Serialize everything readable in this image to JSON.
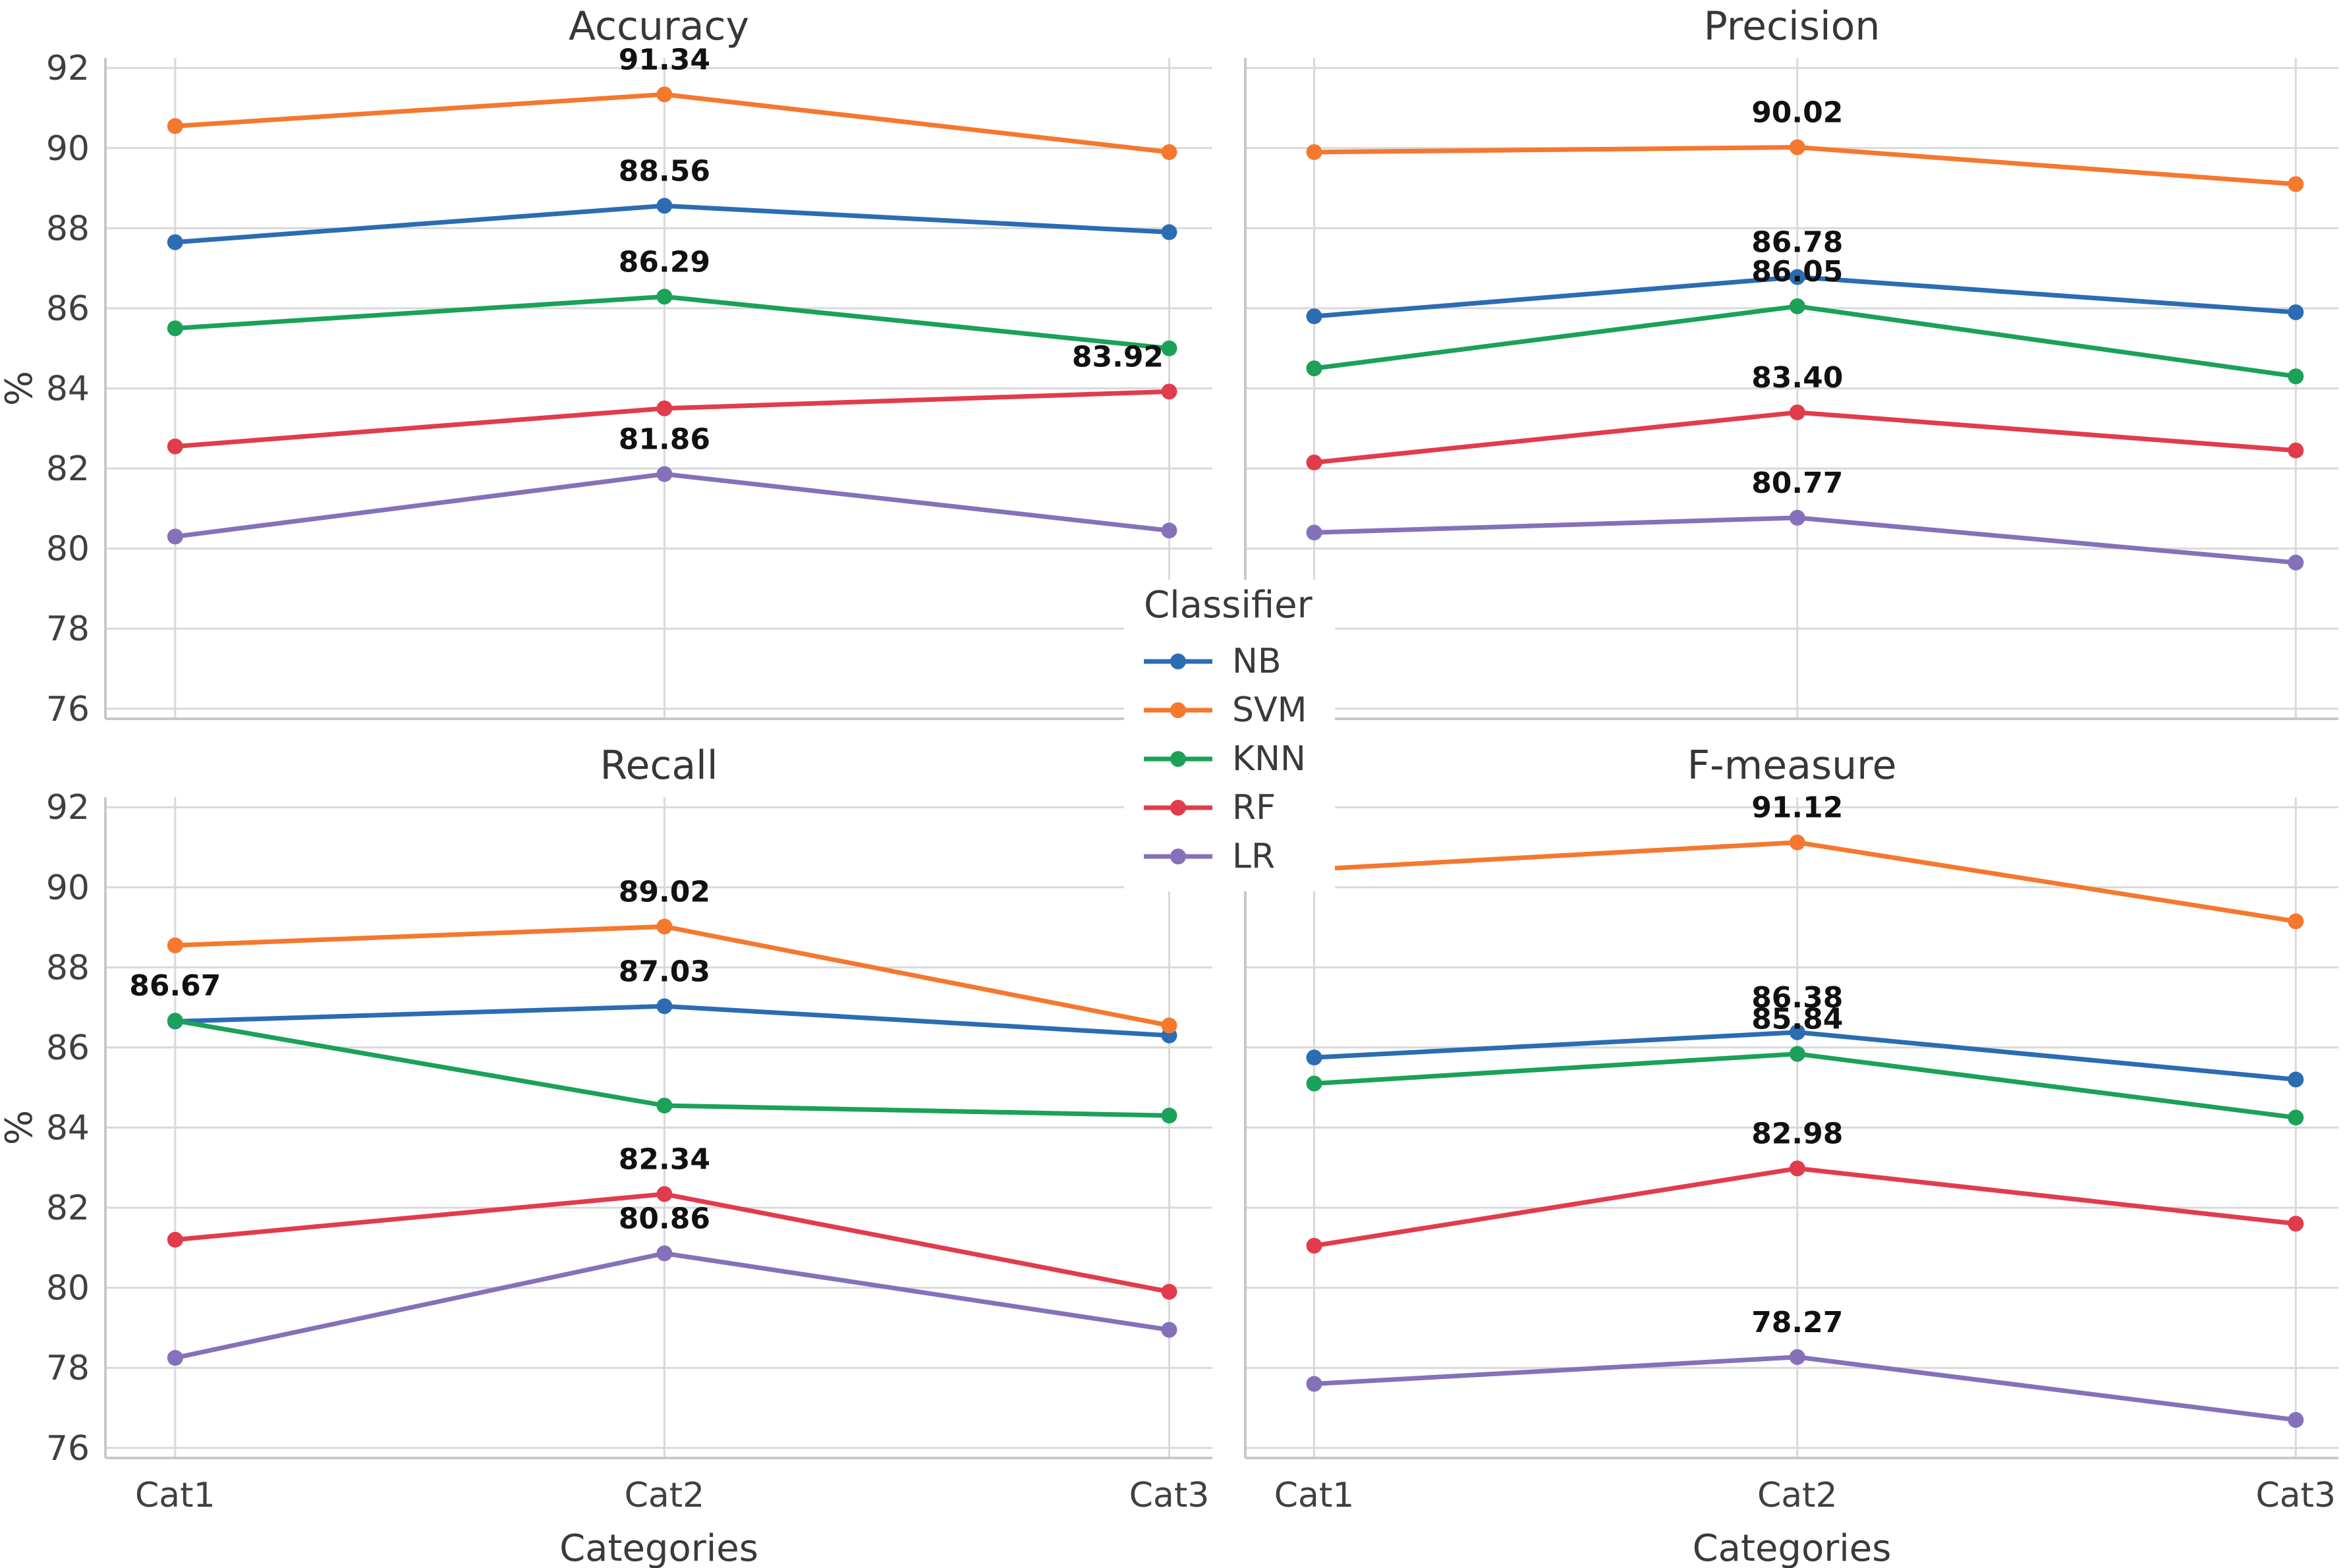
{
  "figure": {
    "background": "#ffffff",
    "grid_color": "#d9d9d9",
    "spine_color": "#c8c8c8",
    "xlabel": "Categories",
    "ylabel": "%",
    "categories": [
      "Cat1",
      "Cat2",
      "Cat3"
    ],
    "y_ticks": [
      "76",
      "78",
      "80",
      "82",
      "84",
      "86",
      "88",
      "90",
      "92"
    ]
  },
  "legend": {
    "title": "Classifier",
    "position": "figure-center",
    "items": [
      {
        "label": "NB",
        "color": "#2b6cb3"
      },
      {
        "label": "SVM",
        "color": "#f4782e"
      },
      {
        "label": "KNN",
        "color": "#1ba158"
      },
      {
        "label": "RF",
        "color": "#e13c4c"
      },
      {
        "label": "LR",
        "color": "#8571b9"
      }
    ]
  },
  "chart_data": [
    {
      "type": "line",
      "title": "Accuracy",
      "position": "top-left",
      "categories": [
        "Cat1",
        "Cat2",
        "Cat3"
      ],
      "xlabel": "Categories",
      "ylabel": "%",
      "ylim": [
        76,
        92
      ],
      "yticks": [
        76,
        78,
        80,
        82,
        84,
        86,
        88,
        90,
        92
      ],
      "grid": true,
      "series": [
        {
          "name": "NB",
          "color": "#2b6cb3",
          "values": [
            87.65,
            88.56,
            87.9
          ]
        },
        {
          "name": "SVM",
          "color": "#f4782e",
          "values": [
            90.55,
            91.34,
            89.9
          ]
        },
        {
          "name": "KNN",
          "color": "#1ba158",
          "values": [
            85.5,
            86.29,
            85.0
          ]
        },
        {
          "name": "RF",
          "color": "#e13c4c",
          "values": [
            82.55,
            83.5,
            83.92
          ]
        },
        {
          "name": "LR",
          "color": "#8571b9",
          "values": [
            80.3,
            81.86,
            80.45
          ]
        }
      ],
      "annotations": [
        {
          "series": "SVM",
          "category": "Cat2",
          "text": "91.34"
        },
        {
          "series": "NB",
          "category": "Cat2",
          "text": "88.56"
        },
        {
          "series": "KNN",
          "category": "Cat2",
          "text": "86.29"
        },
        {
          "series": "RF",
          "category": "Cat3",
          "text": "83.92"
        },
        {
          "series": "LR",
          "category": "Cat2",
          "text": "81.86"
        }
      ]
    },
    {
      "type": "line",
      "title": "Precision",
      "position": "top-right",
      "categories": [
        "Cat1",
        "Cat2",
        "Cat3"
      ],
      "xlabel": "Categories",
      "ylabel": "%",
      "ylim": [
        76,
        92
      ],
      "yticks": [
        76,
        78,
        80,
        82,
        84,
        86,
        88,
        90,
        92
      ],
      "grid": true,
      "series": [
        {
          "name": "NB",
          "color": "#2b6cb3",
          "values": [
            85.8,
            86.78,
            85.9
          ]
        },
        {
          "name": "SVM",
          "color": "#f4782e",
          "values": [
            89.9,
            90.02,
            89.1
          ]
        },
        {
          "name": "KNN",
          "color": "#1ba158",
          "values": [
            84.5,
            86.05,
            84.3
          ]
        },
        {
          "name": "RF",
          "color": "#e13c4c",
          "values": [
            82.15,
            83.4,
            82.45
          ]
        },
        {
          "name": "LR",
          "color": "#8571b9",
          "values": [
            80.4,
            80.77,
            79.65
          ]
        }
      ],
      "annotations": [
        {
          "series": "SVM",
          "category": "Cat2",
          "text": "90.02"
        },
        {
          "series": "NB",
          "category": "Cat2",
          "text": "86.78"
        },
        {
          "series": "KNN",
          "category": "Cat2",
          "text": "86.05"
        },
        {
          "series": "RF",
          "category": "Cat2",
          "text": "83.40"
        },
        {
          "series": "LR",
          "category": "Cat2",
          "text": "80.77"
        }
      ]
    },
    {
      "type": "line",
      "title": "Recall",
      "position": "bottom-left",
      "categories": [
        "Cat1",
        "Cat2",
        "Cat3"
      ],
      "xlabel": "Categories",
      "ylabel": "%",
      "ylim": [
        76,
        92
      ],
      "yticks": [
        76,
        78,
        80,
        82,
        84,
        86,
        88,
        90,
        92
      ],
      "grid": true,
      "series": [
        {
          "name": "NB",
          "color": "#2b6cb3",
          "values": [
            86.65,
            87.03,
            86.3
          ]
        },
        {
          "name": "SVM",
          "color": "#f4782e",
          "values": [
            88.55,
            89.02,
            86.55
          ]
        },
        {
          "name": "KNN",
          "color": "#1ba158",
          "values": [
            86.67,
            84.55,
            84.3
          ]
        },
        {
          "name": "RF",
          "color": "#e13c4c",
          "values": [
            81.2,
            82.34,
            79.9
          ]
        },
        {
          "name": "LR",
          "color": "#8571b9",
          "values": [
            78.25,
            80.86,
            78.95
          ]
        }
      ],
      "annotations": [
        {
          "series": "SVM",
          "category": "Cat2",
          "text": "89.02"
        },
        {
          "series": "NB",
          "category": "Cat2",
          "text": "87.03"
        },
        {
          "series": "KNN",
          "category": "Cat1",
          "text": "86.67"
        },
        {
          "series": "RF",
          "category": "Cat2",
          "text": "82.34"
        },
        {
          "series": "LR",
          "category": "Cat2",
          "text": "80.86"
        }
      ]
    },
    {
      "type": "line",
      "title": "F-measure",
      "position": "bottom-right",
      "categories": [
        "Cat1",
        "Cat2",
        "Cat3"
      ],
      "xlabel": "Categories",
      "ylabel": "%",
      "ylim": [
        76,
        92
      ],
      "yticks": [
        76,
        78,
        80,
        82,
        84,
        86,
        88,
        90,
        92
      ],
      "grid": true,
      "series": [
        {
          "name": "NB",
          "color": "#2b6cb3",
          "values": [
            85.75,
            86.38,
            85.2
          ]
        },
        {
          "name": "SVM",
          "color": "#f4782e",
          "values": [
            90.45,
            91.12,
            89.15
          ]
        },
        {
          "name": "KNN",
          "color": "#1ba158",
          "values": [
            85.1,
            85.84,
            84.25
          ]
        },
        {
          "name": "RF",
          "color": "#e13c4c",
          "values": [
            81.05,
            82.98,
            81.6
          ]
        },
        {
          "name": "LR",
          "color": "#8571b9",
          "values": [
            77.6,
            78.27,
            76.7
          ]
        }
      ],
      "annotations": [
        {
          "series": "SVM",
          "category": "Cat2",
          "text": "91.12"
        },
        {
          "series": "NB",
          "category": "Cat2",
          "text": "86.38"
        },
        {
          "series": "KNN",
          "category": "Cat2",
          "text": "85.84"
        },
        {
          "series": "RF",
          "category": "Cat2",
          "text": "82.98"
        },
        {
          "series": "LR",
          "category": "Cat2",
          "text": "78.27"
        }
      ]
    }
  ]
}
